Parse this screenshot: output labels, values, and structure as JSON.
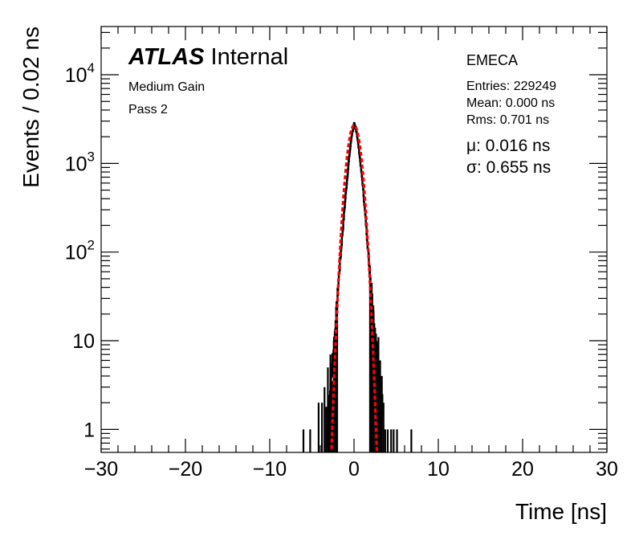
{
  "chart_data": {
    "type": "histogram",
    "xlabel": "Time [ns]",
    "ylabel": "Events / 0.02 ns",
    "xlim": [
      -30,
      30
    ],
    "ylim": [
      0.55,
      35000
    ],
    "yscale": "log",
    "bin_width": 0.02,
    "x_ticks": [
      -30,
      -20,
      -10,
      0,
      10,
      20,
      30
    ],
    "x_tick_labels": [
      "−30",
      "−20",
      "−10",
      "0",
      "10",
      "20",
      "30"
    ],
    "y_ticks": [
      {
        "value": 1,
        "base": "1",
        "exp": ""
      },
      {
        "value": 10,
        "base": "10",
        "exp": ""
      },
      {
        "value": 100,
        "base": "10",
        "exp": "2"
      },
      {
        "value": 1000,
        "base": "10",
        "exp": "3"
      },
      {
        "value": 10000,
        "base": "10",
        "exp": "4"
      }
    ],
    "atlas_label": {
      "bold": "ATLAS",
      "rest": "Internal"
    },
    "annotations": [
      "Medium Gain",
      "Pass 2"
    ],
    "region": "EMECA",
    "stats": [
      "Entries: 229249",
      "Mean: 0.000 ns",
      "Rms: 0.701 ns"
    ],
    "fit": {
      "mu_symbol": "μ",
      "mu_text": ": 0.016 ns",
      "sigma_symbol": "σ",
      "sigma_text": ": 0.655 ns",
      "mu": 0.016,
      "sigma": 0.655,
      "peak": 2700
    },
    "histogram_color": "#000000",
    "fit_color": "#ff0000",
    "hist_profile": [
      [
        -3.0,
        2
      ],
      [
        -2.6,
        5
      ],
      [
        -2.2,
        15
      ],
      [
        -1.8,
        55
      ],
      [
        -1.4,
        160
      ],
      [
        -1.0,
        450
      ],
      [
        -0.6,
        1150
      ],
      [
        -0.3,
        2050
      ],
      [
        0.0,
        2800
      ],
      [
        0.3,
        2250
      ],
      [
        0.6,
        1350
      ],
      [
        1.0,
        600
      ],
      [
        1.4,
        210
      ],
      [
        1.8,
        70
      ],
      [
        2.2,
        24
      ],
      [
        2.6,
        9
      ],
      [
        3.0,
        3.5
      ],
      [
        3.4,
        1.3
      ]
    ],
    "spikes": [
      [
        -6.0,
        1.0
      ],
      [
        -5.2,
        1.0
      ],
      [
        -4.2,
        2.0
      ],
      [
        -3.8,
        2.0
      ],
      [
        -3.5,
        3.0
      ],
      [
        -3.3,
        1.8
      ],
      [
        -3.1,
        5.0
      ],
      [
        -2.8,
        7.0
      ],
      [
        -2.6,
        3.5
      ],
      [
        -2.4,
        10.0
      ],
      [
        -2.2,
        17.0
      ],
      [
        -2.0,
        28.0
      ],
      [
        1.9,
        70.0
      ],
      [
        2.1,
        45.0
      ],
      [
        2.3,
        25.0
      ],
      [
        2.5,
        14.0
      ],
      [
        2.7,
        9.0
      ],
      [
        2.9,
        11.0
      ],
      [
        3.1,
        6.0
      ],
      [
        3.3,
        4.0
      ],
      [
        3.5,
        2.0
      ],
      [
        3.7,
        1.0
      ],
      [
        4.0,
        1.0
      ],
      [
        4.4,
        1.0
      ],
      [
        4.7,
        1.0
      ],
      [
        5.1,
        1.0
      ],
      [
        6.8,
        1.0
      ]
    ]
  }
}
